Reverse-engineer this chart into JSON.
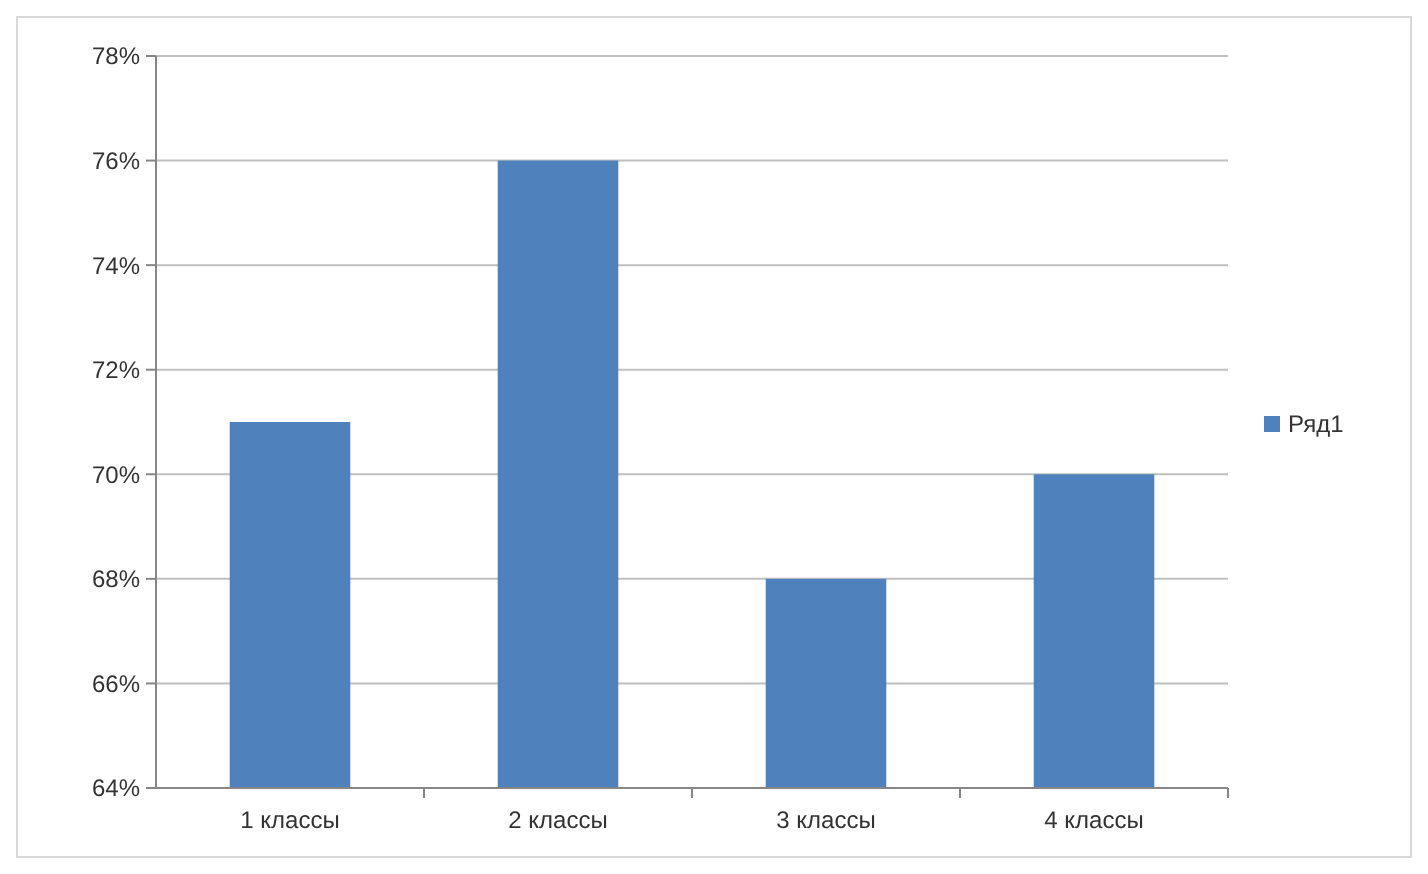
{
  "chart_data": {
    "type": "bar",
    "categories": [
      "1 классы",
      "2 классы",
      "3 классы",
      "4 классы"
    ],
    "series": [
      {
        "name": "Ряд1",
        "color": "#4f81bd",
        "values": [
          71,
          76,
          68,
          70
        ]
      }
    ],
    "ylim": [
      64,
      78
    ],
    "yticks": [
      {
        "value": 64,
        "label": "64%"
      },
      {
        "value": 66,
        "label": "66%"
      },
      {
        "value": 68,
        "label": "68%"
      },
      {
        "value": 70,
        "label": "70%"
      },
      {
        "value": 72,
        "label": "72%"
      },
      {
        "value": 74,
        "label": "74%"
      },
      {
        "value": 76,
        "label": "76%"
      },
      {
        "value": 78,
        "label": "78%"
      }
    ],
    "grid": "y",
    "legend": "right"
  }
}
